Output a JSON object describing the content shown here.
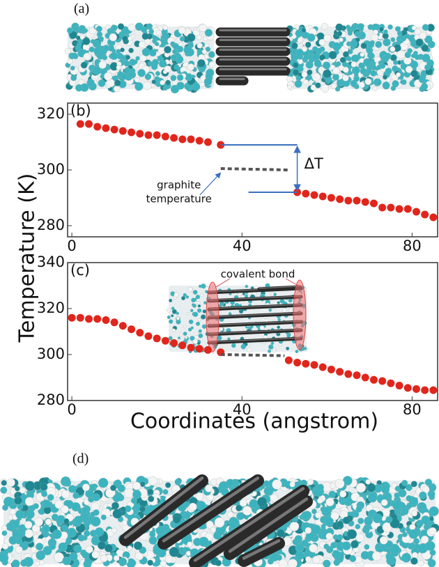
{
  "panels": {
    "a": "(a)",
    "d": "(d)"
  },
  "chart_data": [
    {
      "type": "scatter",
      "panel_label": "(b)",
      "ylabel": "Temperature (K)",
      "xlim": [
        -1,
        86
      ],
      "ylim": [
        276,
        324
      ],
      "xticks": [
        0,
        40,
        80
      ],
      "yticks": [
        280,
        300,
        320
      ],
      "annotations": {
        "delta": "ΔT",
        "graphite": [
          "graphite",
          "temperature"
        ]
      },
      "series": [
        {
          "color": "#e0261c",
          "marker": "circle",
          "x": [
            2,
            4,
            6,
            8,
            10,
            12,
            14,
            16,
            18,
            20,
            22,
            24,
            26,
            28,
            30,
            32,
            35
          ],
          "values": [
            316.5,
            316.5,
            315.5,
            315,
            314.5,
            314,
            313.5,
            313,
            312.5,
            312.5,
            312,
            311.5,
            311,
            311,
            310.5,
            310,
            309
          ]
        },
        {
          "color": "#e0261c",
          "marker": "circle",
          "x": [
            53,
            55,
            57,
            59,
            61,
            63,
            65,
            67,
            69,
            71,
            73,
            75,
            77,
            79,
            81,
            83,
            85
          ],
          "values": [
            292,
            291.5,
            291,
            290.5,
            290,
            289.5,
            289,
            289,
            288.5,
            288,
            286.5,
            286.5,
            286,
            286,
            285,
            284,
            283
          ]
        },
        {
          "color": "#555555",
          "line": "dashed",
          "x": [
            35,
            51
          ],
          "values": [
            300.5,
            300
          ]
        }
      ]
    },
    {
      "type": "scatter",
      "panel_label": "(c)",
      "xlabel": "Coordinates (angstrom)",
      "xlim": [
        -1,
        86
      ],
      "ylim": [
        280,
        340
      ],
      "xticks": [
        0,
        40,
        80
      ],
      "yticks": [
        280,
        300,
        320,
        340
      ],
      "annotations": {
        "bond": "covalent bond"
      },
      "series": [
        {
          "color": "#e0261c",
          "marker": "circle",
          "x": [
            0,
            2,
            4,
            6,
            8,
            10,
            12,
            14,
            16,
            18,
            20,
            22,
            24,
            26,
            28,
            30,
            32,
            35
          ],
          "values": [
            316,
            316,
            315.5,
            315.5,
            315,
            314,
            312.5,
            311,
            309.5,
            308,
            307,
            306,
            305,
            304,
            303,
            302.5,
            302,
            301
          ]
        },
        {
          "color": "#e0261c",
          "marker": "circle",
          "x": [
            51,
            53,
            55,
            57,
            59,
            61,
            63,
            65,
            67,
            69,
            71,
            73,
            75,
            77,
            79,
            81,
            83,
            85
          ],
          "values": [
            297.5,
            296.5,
            296,
            295.5,
            294.5,
            293.5,
            292.5,
            291.5,
            291,
            290,
            289,
            288.5,
            287.5,
            286.5,
            285.5,
            285,
            284.5,
            284.5
          ]
        },
        {
          "color": "#555555",
          "line": "dashed",
          "x": [
            35,
            50
          ],
          "values": [
            300,
            299.5
          ]
        }
      ]
    }
  ]
}
